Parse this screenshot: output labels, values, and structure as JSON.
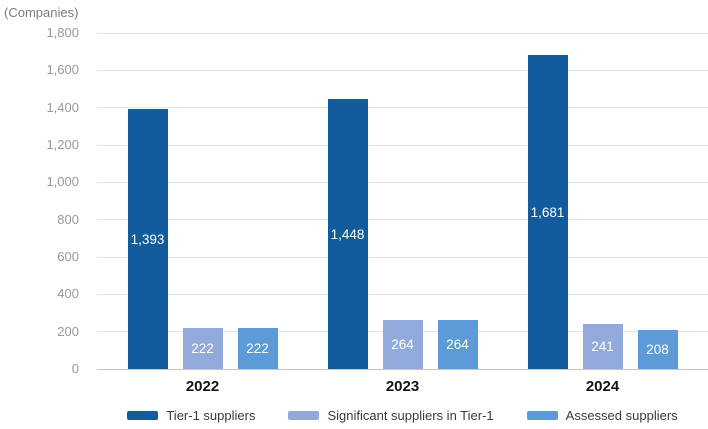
{
  "chart_data": {
    "type": "bar",
    "title": "",
    "unit_label": "(Companies)",
    "xlabel": "",
    "ylabel": "Companies",
    "categories": [
      "2022",
      "2023",
      "2024"
    ],
    "series": [
      {
        "name": "Tier-1 suppliers",
        "color": "#125C9D",
        "values": [
          1393,
          1448,
          1681
        ],
        "value_labels": [
          "1,393",
          "1,448",
          "1,681"
        ]
      },
      {
        "name": "Significant suppliers in Tier-1",
        "color": "#92A9DB",
        "values": [
          222,
          264,
          241
        ],
        "value_labels": [
          "222",
          "264",
          "241"
        ]
      },
      {
        "name": "Assessed suppliers",
        "color": "#5C9BD8",
        "values": [
          222,
          264,
          208
        ],
        "value_labels": [
          "222",
          "264",
          "208"
        ]
      }
    ],
    "ylim": [
      0,
      1800
    ],
    "y_ticks": [
      0,
      200,
      400,
      600,
      800,
      1000,
      1200,
      1400,
      1600,
      1800
    ],
    "y_tick_labels": [
      "0",
      "200",
      "400",
      "600",
      "800",
      "1,000",
      "1,200",
      "1,400",
      "1,600",
      "1,800"
    ],
    "grid": true,
    "legend_position": "bottom"
  },
  "colors": {
    "gridline": "#e3e3e3",
    "zero_line": "#c6c6c6",
    "tick_text": "#989898",
    "unit_text": "#7d7d7d",
    "category_text": "#141414",
    "legend_text": "#3a3a3a",
    "bar_value_text": "#ffffff"
  }
}
